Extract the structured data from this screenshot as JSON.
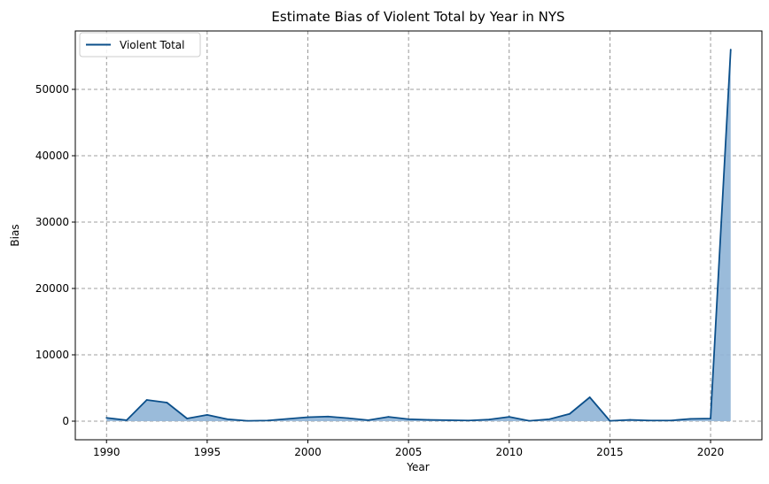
{
  "chart_data": {
    "type": "area",
    "title": "Estimate Bias of Violent Total by Year in NYS",
    "xlabel": "Year",
    "ylabel": "Bias",
    "xlim": [
      1988.45,
      2022.55
    ],
    "ylim": [
      -2800,
      58800
    ],
    "xticks": [
      1990,
      1995,
      2000,
      2005,
      2010,
      2015,
      2020
    ],
    "yticks": [
      0,
      10000,
      20000,
      30000,
      40000,
      50000
    ],
    "grid": true,
    "legend_position": "top-left",
    "series": [
      {
        "name": "Violent Total",
        "color": "#0b4f8a",
        "fill_color": "#8fb4d6",
        "x": [
          1990,
          1991,
          1992,
          1993,
          1994,
          1995,
          1996,
          1997,
          1998,
          1999,
          2000,
          2001,
          2002,
          2003,
          2004,
          2005,
          2006,
          2007,
          2008,
          2009,
          2010,
          2011,
          2012,
          2013,
          2014,
          2015,
          2016,
          2017,
          2018,
          2019,
          2020,
          2021
        ],
        "y": [
          500,
          150,
          3200,
          2800,
          400,
          950,
          300,
          50,
          100,
          350,
          600,
          700,
          450,
          150,
          650,
          300,
          200,
          150,
          100,
          250,
          650,
          50,
          300,
          1100,
          3600,
          50,
          200,
          100,
          100,
          350,
          400,
          56000
        ]
      }
    ]
  }
}
